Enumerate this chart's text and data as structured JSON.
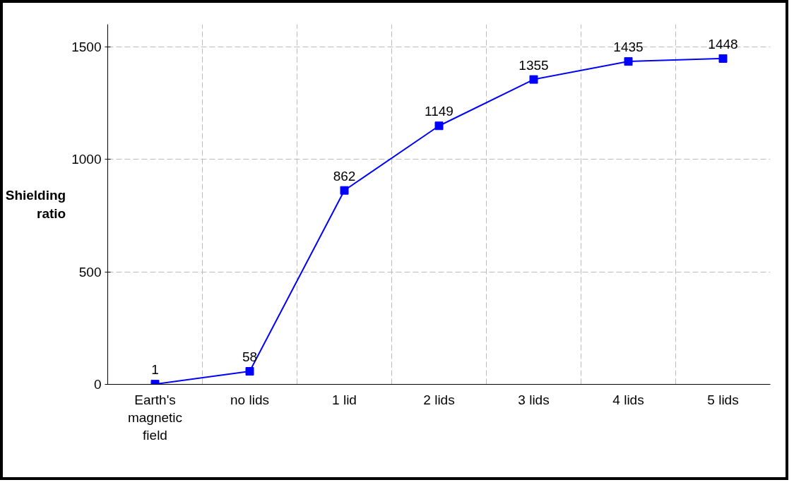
{
  "chart_data": {
    "type": "line",
    "ylabel": "Shielding ratio",
    "categories": [
      "Earth's magnetic field",
      "no lids",
      "1 lid",
      "2 lids",
      "3 lids",
      "4 lids",
      "5 lids"
    ],
    "series": [
      {
        "color": "#0000ff",
        "values": [
          1,
          58,
          862,
          1149,
          1355,
          1435,
          1448
        ]
      }
    ],
    "ylim": [
      0,
      1600
    ],
    "yticks": [
      0,
      500,
      1000,
      1500
    ],
    "grid": true,
    "marker": "square",
    "line_style": "solid",
    "data_labels": true
  }
}
